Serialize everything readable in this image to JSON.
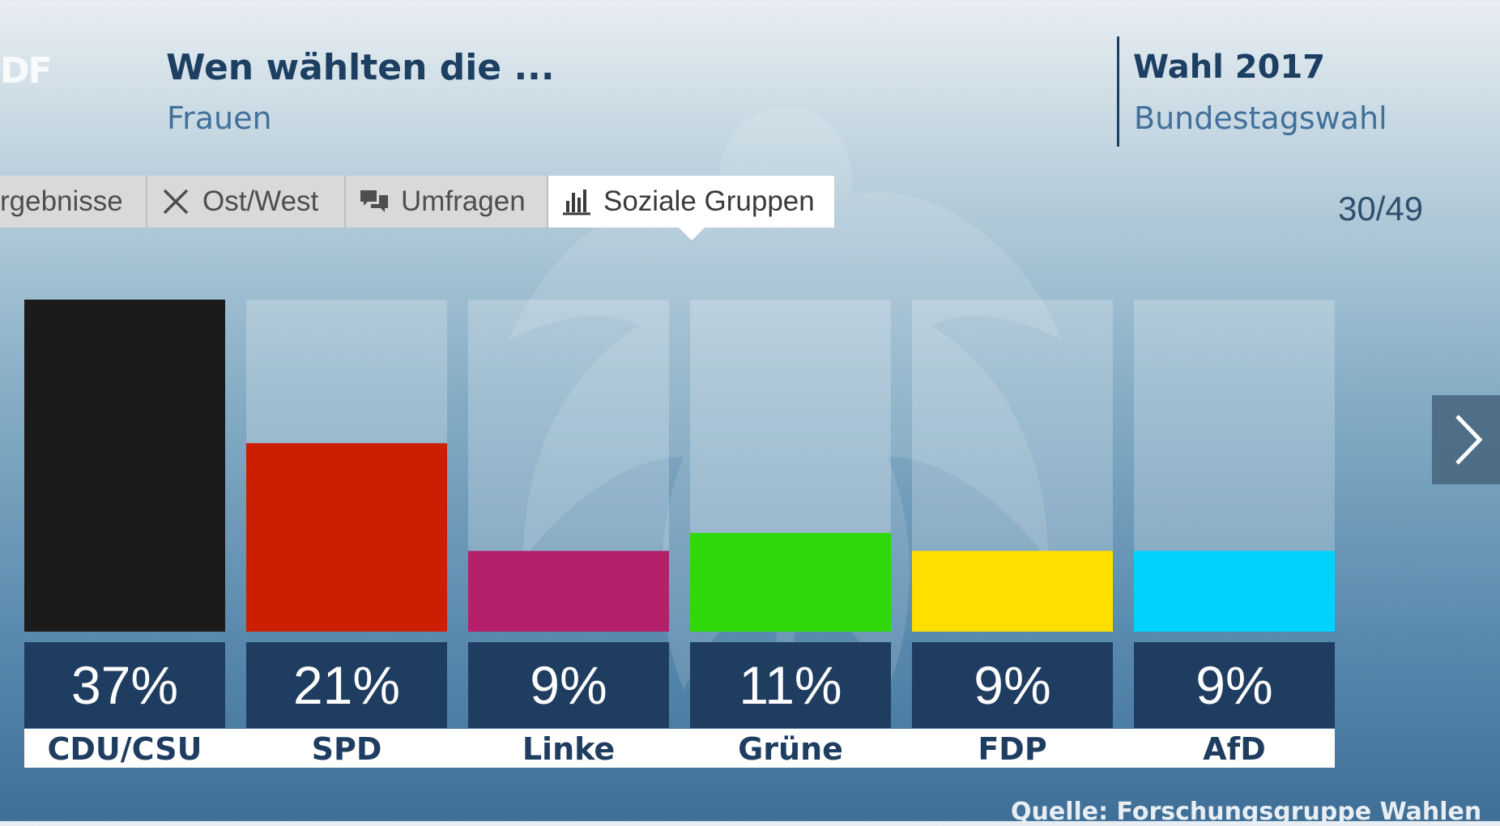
{
  "logo": "DF",
  "header": {
    "title": "Wen wählten die ...",
    "subtitle": "Frauen"
  },
  "brand": {
    "title": "Wahl 2017",
    "subtitle": "Bundestagswahl"
  },
  "tabs": [
    {
      "label": "rgebnisse",
      "icon": "none"
    },
    {
      "label": "Ost/West",
      "icon": "close-icon"
    },
    {
      "label": "Umfragen",
      "icon": "speech-bubbles-icon"
    },
    {
      "label": "Soziale Gruppen",
      "icon": "bar-chart-icon",
      "active": true
    }
  ],
  "pagination": {
    "counter": "30/49"
  },
  "navigation": {
    "next_icon": "chevron-right-icon"
  },
  "chart_data": {
    "type": "bar",
    "title": "Wen wählten die ... Frauen",
    "categories": [
      "CDU/CSU",
      "SPD",
      "Linke",
      "Grüne",
      "FDP",
      "AfD"
    ],
    "values": [
      37,
      21,
      9,
      11,
      9,
      9
    ],
    "value_labels": [
      "37%",
      "21%",
      "9%",
      "11%",
      "9%",
      "9%"
    ],
    "colors": [
      "#1b1b1b",
      "#cc1e00",
      "#b5206b",
      "#2fd80b",
      "#ffdf00",
      "#00d2ff"
    ],
    "ylim": [
      0,
      37
    ],
    "xlabel": "",
    "ylabel": "",
    "grid": false,
    "legend": "none"
  },
  "source": "Quelle: Forschungsgruppe Wahlen"
}
